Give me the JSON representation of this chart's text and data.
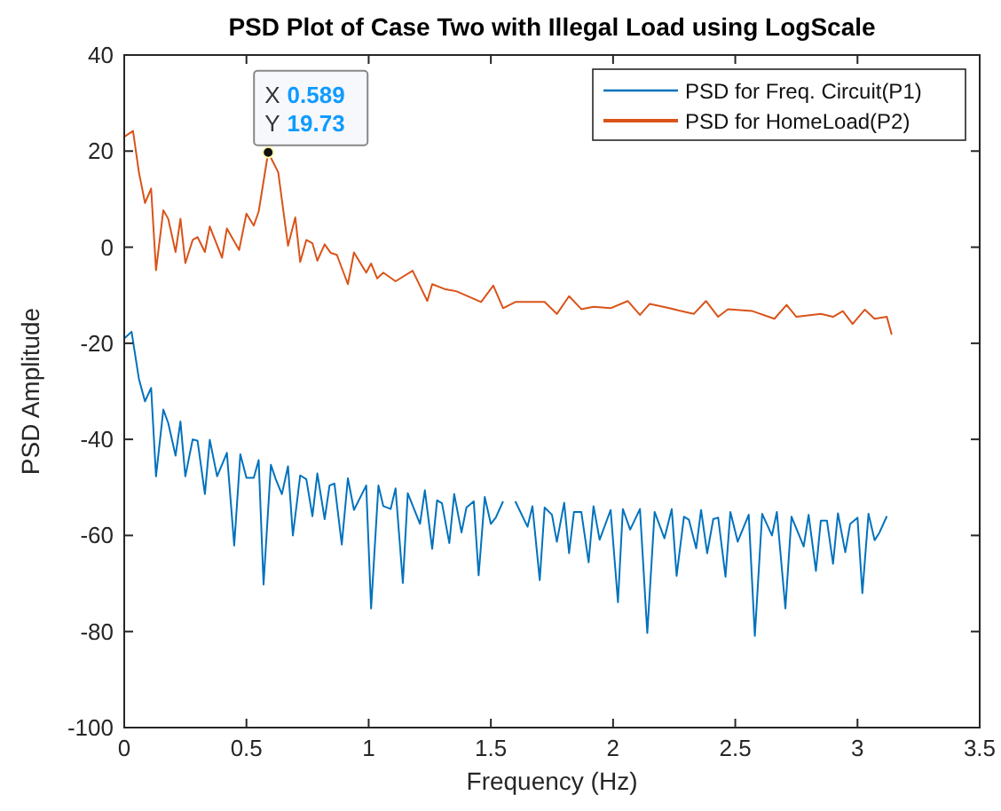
{
  "chart_data": {
    "type": "line",
    "title": "PSD Plot of Case Two with Illegal Load using LogScale",
    "xlabel": "Frequency (Hz)",
    "ylabel": "PSD Amplitude",
    "xlim": [
      0,
      3.5
    ],
    "xticks": [
      0,
      0.5,
      1,
      1.5,
      2,
      2.5,
      3,
      3.5
    ],
    "ylim": [
      -100,
      40
    ],
    "yticks": [
      -100,
      -80,
      -60,
      -40,
      -20,
      0,
      20,
      40
    ],
    "legend": "top right",
    "grid": false,
    "line_style": "solid",
    "marker": "none",
    "annotations": [
      {
        "text": "X 0.589\nY 19.73",
        "x": 0.589,
        "y": 19.73
      }
    ],
    "series": [
      {
        "name": "PSD for Freq. Circuit(P1)",
        "color": "#0072bd",
        "x": [
          0,
          0.03,
          0.06,
          0.085,
          0.11,
          0.13,
          0.16,
          0.18,
          0.21,
          0.23,
          0.25,
          0.28,
          0.3,
          0.33,
          0.35,
          0.38,
          0.42,
          0.45,
          0.475,
          0.5,
          0.53,
          0.55,
          0.57,
          0.6,
          0.62,
          0.645,
          0.67,
          0.69,
          0.72,
          0.745,
          0.77,
          0.79,
          0.82,
          0.84,
          0.86,
          0.89,
          0.915,
          0.94,
          0.99,
          1.01,
          1.04,
          1.06,
          1.09,
          1.11,
          1.14,
          1.16,
          1.21,
          1.23,
          1.26,
          1.28,
          1.3,
          1.33,
          1.35,
          1.38,
          1.4,
          1.43,
          1.45,
          1.475,
          1.5,
          1.52,
          1.55,
          1.57,
          1.6,
          1.65,
          1.67,
          1.7,
          1.72,
          1.75,
          1.77,
          1.8,
          1.82,
          1.84,
          1.87,
          1.9,
          1.92,
          1.945,
          1.99,
          2.02,
          2.04,
          2.07,
          2.11,
          2.14,
          2.17,
          2.21,
          2.24,
          2.26,
          2.29,
          2.31,
          2.34,
          2.36,
          2.385,
          2.41,
          2.43,
          2.46,
          2.48,
          2.51,
          2.555,
          2.58,
          2.61,
          2.65,
          2.67,
          2.705,
          2.73,
          2.78,
          2.8,
          2.83,
          2.85,
          2.875,
          2.9,
          2.92,
          2.95,
          2.97,
          3.0,
          3.02,
          3.045,
          3.07,
          3.09,
          3.12
        ],
        "values": [
          -19,
          -17.6,
          -27.4,
          -32.1,
          -29.3,
          -47.7,
          -33.8,
          -36.6,
          -43.4,
          -36.3,
          -47.7,
          -40,
          -40.3,
          -51.4,
          -40.1,
          -47.7,
          -42.8,
          -62.1,
          -43.1,
          -48,
          -48,
          -44.3,
          -70.2,
          -45.3,
          -48.3,
          -51.4,
          -45.6,
          -60,
          -47.5,
          -48.3,
          -56,
          -47.1,
          -56.6,
          -49.6,
          -49.2,
          -61.9,
          -48.1,
          -54.7,
          -49.6,
          -75.2,
          -49.6,
          -53.9,
          -54.5,
          -50.2,
          -69.9,
          -51.2,
          -57.6,
          -50.6,
          -62.8,
          -52.7,
          -53.3,
          -61.6,
          -51.4,
          -59.4,
          -54.2,
          -52.9,
          -68.3,
          -52,
          -57.6,
          -56.3,
          -52.9,
          null,
          -52.9,
          -58.2,
          -53.9,
          -69.3,
          -54.2,
          -55.7,
          -61.3,
          -53.2,
          -63.7,
          -55.1,
          -55.1,
          -65.6,
          -53.9,
          -60.9,
          -54.7,
          -73.9,
          -54.5,
          -58.8,
          -54.5,
          -80.3,
          -55.1,
          -60.6,
          -54.5,
          -68.4,
          -56.1,
          -56.7,
          -62.7,
          -54.7,
          -63.7,
          -56.6,
          -56.3,
          -68.6,
          -55.1,
          -61.3,
          -55.7,
          -80.9,
          -55.5,
          -60,
          -55.1,
          -75.2,
          -56.1,
          -62.3,
          -55.7,
          -67.4,
          -56.9,
          -56.9,
          -65.9,
          -55.4,
          -63.5,
          -57.6,
          -56.3,
          -72,
          -55.5,
          -61,
          -59.4,
          -56
        ]
      },
      {
        "name": "PSD for HomeLoad(P2)",
        "color": "#d95319",
        "x": [
          0,
          0.036,
          0.06,
          0.085,
          0.11,
          0.13,
          0.16,
          0.18,
          0.21,
          0.23,
          0.25,
          0.28,
          0.3,
          0.33,
          0.35,
          0.4,
          0.42,
          0.47,
          0.5,
          0.53,
          0.55,
          0.589,
          0.63,
          0.67,
          0.7,
          0.72,
          0.745,
          0.77,
          0.79,
          0.82,
          0.845,
          0.87,
          0.915,
          0.94,
          0.99,
          1.01,
          1.035,
          1.06,
          1.11,
          1.18,
          1.24,
          1.26,
          1.31,
          1.36,
          1.46,
          1.51,
          1.55,
          1.6,
          1.65,
          1.72,
          1.77,
          1.82,
          1.87,
          1.92,
          1.99,
          2.06,
          2.11,
          2.15,
          2.23,
          2.33,
          2.38,
          2.43,
          2.47,
          2.57,
          2.66,
          2.71,
          2.75,
          2.85,
          2.9,
          2.94,
          2.98,
          3.03,
          3.07,
          3.12,
          3.14
        ],
        "values": [
          23,
          24.2,
          15.6,
          9.2,
          12.2,
          -4.8,
          7.7,
          5.9,
          -1,
          5.9,
          -3.3,
          1.5,
          2.1,
          -1,
          4.3,
          -2.2,
          3.9,
          -0.6,
          7,
          4.5,
          7.4,
          19.73,
          15.6,
          0.3,
          6.2,
          -3.1,
          1.5,
          0.8,
          -2.8,
          0.6,
          -1.2,
          -1.6,
          -7.7,
          -1.1,
          -5.3,
          -3.4,
          -6.5,
          -5.3,
          -7.1,
          -4.9,
          -11.2,
          -7.7,
          -8.7,
          -9.2,
          -11.4,
          -8,
          -12.7,
          -11.4,
          -11.4,
          -11.4,
          -13.9,
          -10.2,
          -12.9,
          -12.4,
          -12.7,
          -11.2,
          -14.1,
          -11.8,
          -12.7,
          -13.9,
          -11.2,
          -14.5,
          -12.9,
          -13.3,
          -14.9,
          -12,
          -14.5,
          -13.9,
          -14.5,
          -13.3,
          -16,
          -13,
          -14.9,
          -14.5,
          -18.2
        ]
      }
    ]
  }
}
